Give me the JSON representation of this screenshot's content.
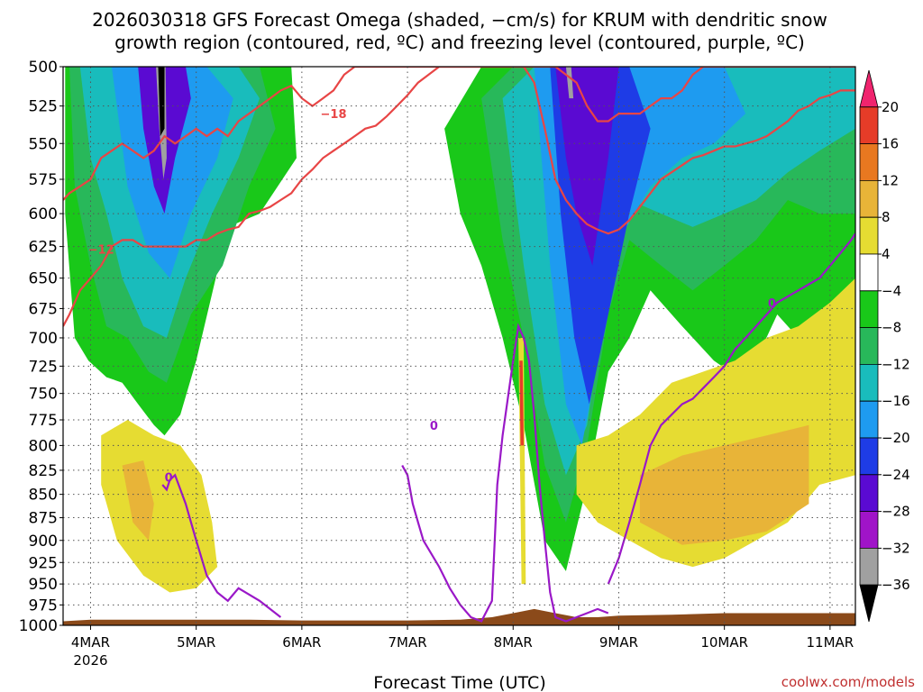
{
  "title": {
    "line1": "2026030318 GFS Forecast Omega (shaded, −cm/s) for KRUM with dendritic snow",
    "line2": "growth region (contoured, red, ºC) and freezing level (contoured, purple, ºC)"
  },
  "credit": "coolwx.com/models",
  "chart_data": {
    "type": "heatmap",
    "xlabel": "Forecast Time (UTC)",
    "ylabel": "",
    "x_unit": "day",
    "xlim": [
      3.74,
      11.24
    ],
    "x_ticks": [
      {
        "value": 4,
        "label": "4MAR",
        "sublabel": "2026"
      },
      {
        "value": 5,
        "label": "5MAR",
        "sublabel": ""
      },
      {
        "value": 6,
        "label": "6MAR",
        "sublabel": ""
      },
      {
        "value": 7,
        "label": "7MAR",
        "sublabel": ""
      },
      {
        "value": 8,
        "label": "8MAR",
        "sublabel": ""
      },
      {
        "value": 9,
        "label": "9MAR",
        "sublabel": ""
      },
      {
        "value": 10,
        "label": "10MAR",
        "sublabel": ""
      },
      {
        "value": 11,
        "label": "11MAR",
        "sublabel": ""
      }
    ],
    "y_scale": "log",
    "ylim": [
      1000,
      500
    ],
    "y_ticks": [
      500,
      525,
      550,
      575,
      600,
      625,
      650,
      675,
      700,
      725,
      750,
      775,
      800,
      825,
      850,
      875,
      900,
      925,
      950,
      975,
      1000
    ],
    "grid": true,
    "colorbar": {
      "levels": [
        20,
        16,
        12,
        8,
        4,
        -4,
        -8,
        -12,
        -16,
        -20,
        -24,
        -28,
        -32,
        -36
      ],
      "colors": [
        "#f0246e",
        "#e63c28",
        "#e87820",
        "#e8b438",
        "#e6dc32",
        "#ffffff",
        "#19c819",
        "#28b85a",
        "#19bcbc",
        "#1e9bf0",
        "#1e3ce6",
        "#5a0ad2",
        "#a014c8",
        "#a0a0a0",
        "#000000"
      ]
    },
    "shaded_regions": [
      {
        "fill": "#19c819",
        "x": [
          3.76,
          4.1,
          4.4,
          4.7,
          5.0,
          5.3,
          5.6,
          5.9,
          5.95,
          5.6,
          5.3,
          5.0,
          4.85,
          4.7,
          4.6,
          4.45,
          4.3,
          4.15,
          3.98,
          3.85,
          3.76
        ],
        "y": [
          500,
          500,
          500,
          500,
          500,
          500,
          500,
          500,
          560,
          600,
          610,
          720,
          770,
          790,
          780,
          760,
          740,
          735,
          720,
          700,
          600
        ]
      },
      {
        "fill": "#28b85a",
        "x": [
          3.8,
          4.1,
          4.4,
          4.7,
          5.0,
          5.3,
          5.6,
          5.75,
          5.5,
          5.25,
          4.95,
          4.72,
          4.55,
          4.35,
          4.15,
          4.0,
          3.85
        ],
        "y": [
          500,
          500,
          500,
          500,
          500,
          500,
          500,
          540,
          580,
          640,
          680,
          740,
          730,
          700,
          690,
          640,
          580
        ]
      },
      {
        "fill": "#19bcbc",
        "x": [
          3.9,
          4.2,
          4.5,
          4.8,
          5.1,
          5.4,
          5.6,
          5.4,
          5.15,
          4.9,
          4.72,
          4.5,
          4.3,
          4.15,
          4.0
        ],
        "y": [
          500,
          500,
          500,
          500,
          500,
          500,
          520,
          560,
          600,
          650,
          700,
          690,
          650,
          600,
          560
        ]
      },
      {
        "fill": "#1e9bf0",
        "x": [
          4.2,
          4.5,
          4.8,
          5.1,
          5.35,
          5.2,
          4.95,
          4.75,
          4.55,
          4.35
        ],
        "y": [
          500,
          500,
          500,
          500,
          520,
          560,
          600,
          650,
          630,
          580
        ]
      },
      {
        "fill": "#5a0ad2",
        "x": [
          4.45,
          4.6,
          4.75,
          4.9,
          4.95,
          4.8,
          4.7,
          4.6,
          4.5
        ],
        "y": [
          500,
          500,
          500,
          500,
          520,
          560,
          600,
          580,
          540
        ]
      },
      {
        "fill": "#a0a0a0",
        "x": [
          4.62,
          4.67,
          4.71,
          4.72,
          4.69,
          4.65
        ],
        "y": [
          500,
          500,
          500,
          560,
          575,
          540
        ]
      },
      {
        "fill": "#000000",
        "x": [
          4.64,
          4.7,
          4.7,
          4.66
        ],
        "y": [
          500,
          500,
          540,
          545
        ]
      },
      {
        "fill": "#19c819",
        "x": [
          7.35,
          7.7,
          8.0,
          8.3,
          8.6,
          8.9,
          9.2,
          9.5,
          9.8,
          10.1,
          10.4,
          10.7,
          11.0,
          11.24,
          11.24,
          11.0,
          10.7,
          10.5,
          10.2,
          9.9,
          9.6,
          9.3,
          9.1,
          8.9,
          8.7,
          8.5,
          8.3,
          8.1,
          7.9,
          7.7,
          7.5
        ],
        "y": [
          540,
          500,
          500,
          500,
          500,
          500,
          500,
          500,
          500,
          500,
          500,
          500,
          500,
          500,
          690,
          720,
          700,
          680,
          740,
          720,
          690,
          660,
          700,
          730,
          840,
          935,
          900,
          780,
          700,
          640,
          600
        ]
      },
      {
        "fill": "#28b85a",
        "x": [
          7.7,
          8.0,
          8.3,
          8.6,
          8.9,
          9.2,
          9.5,
          9.8,
          10.1,
          10.4,
          10.7,
          11.0,
          11.24,
          11.24,
          10.9,
          10.6,
          10.3,
          10.0,
          9.7,
          9.4,
          9.1,
          8.9,
          8.7,
          8.5,
          8.3,
          8.1,
          7.9
        ],
        "y": [
          520,
          500,
          500,
          500,
          500,
          500,
          500,
          500,
          500,
          500,
          500,
          500,
          500,
          600,
          600,
          590,
          620,
          640,
          660,
          640,
          620,
          680,
          800,
          880,
          820,
          700,
          620
        ]
      },
      {
        "fill": "#19bcbc",
        "x": [
          7.9,
          8.2,
          8.5,
          8.8,
          9.1,
          9.4,
          9.7,
          10.0,
          10.3,
          10.6,
          10.9,
          11.24,
          11.24,
          10.9,
          10.6,
          10.3,
          10.0,
          9.7,
          9.4,
          9.1,
          8.9,
          8.7,
          8.5,
          8.3,
          8.1
        ],
        "y": [
          520,
          500,
          500,
          500,
          500,
          500,
          500,
          500,
          500,
          500,
          500,
          500,
          540,
          555,
          570,
          590,
          600,
          610,
          600,
          590,
          650,
          780,
          830,
          760,
          640
        ]
      },
      {
        "fill": "#1e9bf0",
        "x": [
          8.2,
          8.5,
          8.8,
          9.1,
          9.4,
          9.7,
          10.0,
          10.2,
          9.9,
          9.6,
          9.3,
          9.0,
          8.8,
          8.65,
          8.5,
          8.35
        ],
        "y": [
          500,
          500,
          500,
          500,
          500,
          500,
          500,
          530,
          550,
          560,
          580,
          620,
          720,
          800,
          760,
          640
        ]
      },
      {
        "fill": "#1e3ce6",
        "x": [
          8.35,
          8.6,
          8.85,
          9.1,
          9.3,
          9.1,
          8.9,
          8.72,
          8.58,
          8.45
        ],
        "y": [
          500,
          500,
          500,
          500,
          540,
          600,
          680,
          760,
          700,
          600
        ]
      },
      {
        "fill": "#5a0ad2",
        "x": [
          8.4,
          8.6,
          8.8,
          9.0,
          8.9,
          8.75,
          8.6,
          8.5
        ],
        "y": [
          500,
          500,
          500,
          500,
          560,
          640,
          600,
          560
        ]
      },
      {
        "fill": "#a0a0a0",
        "x": [
          8.5,
          8.55,
          8.57,
          8.53
        ],
        "y": [
          500,
          500,
          520,
          520
        ]
      },
      {
        "fill": "#e6dc32",
        "x": [
          4.1,
          4.35,
          4.6,
          4.85,
          5.05,
          5.15,
          5.2,
          5.0,
          4.75,
          4.5,
          4.25,
          4.1
        ],
        "y": [
          790,
          775,
          790,
          800,
          830,
          880,
          930,
          955,
          960,
          940,
          900,
          840
        ]
      },
      {
        "fill": "#e6dc32",
        "x": [
          8.6,
          8.9,
          9.2,
          9.5,
          9.8,
          10.1,
          10.4,
          10.7,
          11.0,
          11.24,
          11.24,
          10.9,
          10.6,
          10.3,
          10.0,
          9.7,
          9.4,
          9.1,
          8.8,
          8.6
        ],
        "y": [
          800,
          790,
          770,
          740,
          730,
          720,
          700,
          690,
          670,
          650,
          830,
          840,
          880,
          900,
          920,
          930,
          920,
          900,
          880,
          850
        ]
      },
      {
        "fill": "#e8b438",
        "x": [
          4.3,
          4.5,
          4.6,
          4.55,
          4.4
        ],
        "y": [
          820,
          815,
          860,
          900,
          880
        ]
      },
      {
        "fill": "#e8b438",
        "x": [
          9.2,
          9.6,
          10.0,
          10.4,
          10.8,
          10.8,
          10.4,
          10.0,
          9.6,
          9.2
        ],
        "y": [
          830,
          810,
          800,
          790,
          780,
          860,
          890,
          900,
          905,
          880
        ]
      },
      {
        "fill": "#e6dc32",
        "x": [
          8.05,
          8.1,
          8.12,
          8.08
        ],
        "y": [
          700,
          700,
          950,
          950
        ]
      },
      {
        "fill": "#e63c28",
        "x": [
          8.06,
          8.09,
          8.1,
          8.07
        ],
        "y": [
          720,
          720,
          800,
          800
        ]
      }
    ],
    "contours": [
      {
        "level": -18,
        "color": "red",
        "x": [
          3.74,
          3.8,
          3.9,
          4.0,
          4.1,
          4.2,
          4.3,
          4.4,
          4.5,
          4.6,
          4.7,
          4.8,
          4.9,
          5.0,
          5.1,
          5.2,
          5.3,
          5.4,
          5.5,
          5.6,
          5.7,
          5.8,
          5.9,
          6.0,
          6.1,
          6.2,
          6.3,
          6.4,
          6.5,
          6.6,
          6.7,
          6.8,
          6.9,
          7.0,
          7.1,
          7.2,
          7.3,
          7.4,
          7.5,
          7.6,
          7.7,
          7.8,
          7.9,
          8.0,
          8.1,
          8.2,
          8.3,
          8.4,
          8.5,
          8.6,
          8.7,
          8.8,
          8.9,
          9.0,
          9.1,
          9.2,
          9.3,
          9.4,
          9.5,
          9.6,
          9.7,
          9.8,
          9.9,
          10.0,
          10.1,
          10.2,
          10.3,
          10.4,
          10.5,
          10.6,
          10.7,
          10.8,
          10.9,
          11.0,
          11.1,
          11.24
        ],
        "y": [
          590,
          585,
          580,
          575,
          560,
          555,
          550,
          555,
          560,
          555,
          545,
          550,
          545,
          540,
          545,
          540,
          545,
          535,
          530,
          525,
          520,
          515,
          512,
          520,
          525,
          520,
          515,
          505,
          500,
          500,
          500,
          500,
          500,
          500,
          500,
          500,
          500,
          500,
          500,
          500,
          500,
          500,
          500,
          500,
          500,
          500,
          500,
          500,
          505,
          510,
          525,
          535,
          535,
          530,
          530,
          530,
          525,
          520,
          520,
          515,
          505,
          500,
          500,
          500,
          500,
          500,
          500,
          500,
          500,
          500,
          500,
          500,
          500,
          500,
          500,
          500
        ],
        "label": "−18",
        "label_x": 6.3,
        "label_y": 530
      },
      {
        "level": -12,
        "color": "red",
        "x": [
          3.74,
          3.8,
          3.9,
          4.0,
          4.1,
          4.2,
          4.3,
          4.4,
          4.5,
          4.6,
          4.7,
          4.8,
          4.9,
          5.0,
          5.1,
          5.2,
          5.3,
          5.4,
          5.5,
          5.6,
          5.7,
          5.8,
          5.9,
          6.0,
          6.1,
          6.2,
          6.3,
          6.4,
          6.5,
          6.6,
          6.7,
          6.8,
          6.9,
          7.0,
          7.1,
          7.2,
          7.3,
          7.4,
          7.5,
          7.6,
          7.7,
          7.8,
          7.9,
          8.0,
          8.1,
          8.2,
          8.3,
          8.4,
          8.5,
          8.6,
          8.7,
          8.8,
          8.9,
          9.0,
          9.1,
          9.2,
          9.3,
          9.4,
          9.5,
          9.6,
          9.7,
          9.8,
          9.9,
          10.0,
          10.1,
          10.2,
          10.3,
          10.4,
          10.5,
          10.6,
          10.7,
          10.8,
          10.9,
          11.0,
          11.1,
          11.24
        ],
        "y": [
          690,
          680,
          660,
          650,
          640,
          625,
          620,
          620,
          625,
          625,
          625,
          625,
          625,
          620,
          620,
          615,
          612,
          610,
          600,
          598,
          595,
          590,
          585,
          575,
          568,
          560,
          555,
          550,
          545,
          540,
          538,
          532,
          525,
          518,
          510,
          505,
          500,
          500,
          500,
          500,
          500,
          500,
          500,
          500,
          500,
          510,
          540,
          575,
          590,
          600,
          608,
          612,
          615,
          612,
          605,
          595,
          585,
          575,
          570,
          565,
          560,
          558,
          555,
          552,
          552,
          550,
          548,
          545,
          540,
          535,
          528,
          525,
          520,
          518,
          515,
          515
        ],
        "label": "−12",
        "label_x": 4.1,
        "label_y": 627
      },
      {
        "level": 0,
        "color": "purple",
        "x": [
          4.68,
          4.72,
          4.75,
          4.8,
          4.9,
          5.0,
          5.1,
          5.2,
          5.3,
          5.4,
          5.6,
          5.8
        ],
        "y": [
          840,
          845,
          835,
          830,
          860,
          900,
          940,
          960,
          970,
          955,
          970,
          990
        ],
        "label": "0",
        "label_x": 4.74,
        "label_y": 832
      },
      {
        "level": 0,
        "color": "purple",
        "x": [
          6.95,
          7.0,
          7.05,
          7.1,
          7.15,
          7.3,
          7.4,
          7.5,
          7.6,
          7.7,
          7.8,
          7.85,
          7.9,
          8.0,
          8.05,
          8.1,
          8.15,
          8.2,
          8.25,
          8.3,
          8.35,
          8.4,
          8.5,
          8.6,
          8.7,
          8.8,
          8.9
        ],
        "y": [
          820,
          830,
          860,
          880,
          900,
          930,
          955,
          975,
          990,
          995,
          970,
          840,
          790,
          720,
          690,
          700,
          720,
          770,
          840,
          900,
          960,
          990,
          995,
          990,
          985,
          980,
          985
        ],
        "label": "0",
        "label_x": 7.25,
        "label_y": 780
      },
      {
        "level": 0,
        "color": "purple",
        "x": [
          8.9,
          9.0,
          9.1,
          9.2,
          9.3,
          9.4,
          9.5,
          9.6,
          9.7,
          9.8,
          9.9,
          10.0,
          10.1,
          10.2,
          10.3,
          10.4,
          10.5,
          10.6,
          10.7,
          10.8,
          10.9,
          11.0,
          11.1,
          11.2,
          11.24
        ],
        "y": [
          950,
          920,
          880,
          840,
          800,
          780,
          770,
          760,
          755,
          745,
          735,
          725,
          710,
          700,
          690,
          680,
          670,
          665,
          660,
          655,
          650,
          640,
          630,
          620,
          615
        ],
        "label": "0",
        "label_x": 10.45,
        "label_y": 670
      }
    ],
    "terrain": {
      "fill": "#8b4a1a",
      "x": [
        3.74,
        4.0,
        4.5,
        5.0,
        5.5,
        6.0,
        6.5,
        7.0,
        7.5,
        7.8,
        8.0,
        8.2,
        8.4,
        8.6,
        8.8,
        9.0,
        9.5,
        10.0,
        10.5,
        11.0,
        11.24
      ],
      "p": [
        995,
        993,
        993,
        993,
        993,
        994,
        994,
        994,
        993,
        990,
        985,
        980,
        985,
        990,
        990,
        988,
        987,
        985,
        985,
        985,
        985
      ]
    }
  }
}
